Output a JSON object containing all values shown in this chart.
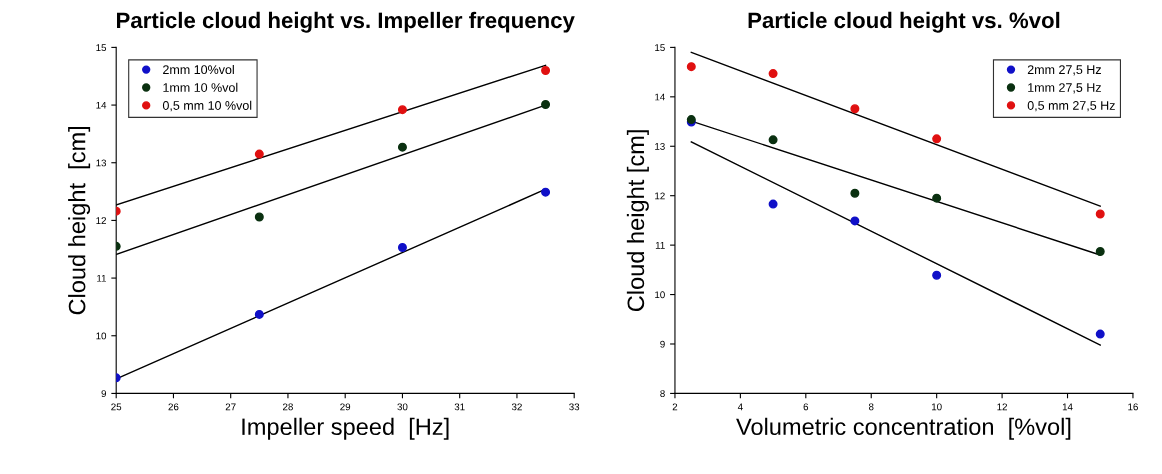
{
  "chart_data": [
    {
      "type": "scatter",
      "title": "Particle cloud height vs. Impeller frequency",
      "xlabel": "Impeller speed  [Hz]",
      "ylabel": "Cloud height  [cm]",
      "xlim": [
        25,
        33
      ],
      "xticks": [
        25,
        26,
        27,
        28,
        29,
        30,
        31,
        32,
        33
      ],
      "ylim": [
        9,
        15
      ],
      "yticks": [
        9,
        10,
        11,
        12,
        13,
        14,
        15
      ],
      "grid": false,
      "legend": "top left",
      "marker": "circle",
      "series": [
        {
          "name": "2mm 10%vol",
          "color": "#1010c8",
          "x": [
            25,
            27.5,
            30,
            32.5
          ],
          "values": [
            9.27,
            10.37,
            11.53,
            12.49
          ]
        },
        {
          "name": "1mm 10 %vol",
          "color": "#0a3010",
          "x": [
            25,
            27.5,
            30,
            32.5
          ],
          "values": [
            11.55,
            12.06,
            13.27,
            14.01
          ]
        },
        {
          "name": "0,5 mm 10 %vol",
          "color": "#e01010",
          "x": [
            25,
            27.5,
            30,
            32.5
          ],
          "values": [
            12.16,
            13.15,
            13.92,
            14.6
          ]
        },
        {
          "type": "line",
          "marker": "none",
          "color": "#000000",
          "x": [
            25,
            32.5
          ],
          "values": [
            9.25,
            12.54
          ]
        },
        {
          "type": "line",
          "marker": "none",
          "color": "#000000",
          "x": [
            25,
            32.5
          ],
          "values": [
            11.41,
            14.0
          ]
        },
        {
          "type": "line",
          "marker": "none",
          "color": "#000000",
          "x": [
            25,
            32.5
          ],
          "values": [
            12.27,
            14.69
          ]
        }
      ]
    },
    {
      "type": "scatter",
      "title": "Particle cloud height vs. %vol",
      "xlabel": "Volumetric concentration  [%vol]",
      "ylabel": "Cloud height [cm]",
      "xlim": [
        2,
        16
      ],
      "xticks": [
        2,
        4,
        6,
        8,
        10,
        12,
        14,
        16
      ],
      "ylim": [
        8,
        15
      ],
      "yticks": [
        8,
        9,
        10,
        11,
        12,
        13,
        14,
        15
      ],
      "grid": false,
      "legend": "top right",
      "marker": "circle",
      "series": [
        {
          "name": "2mm 27,5 Hz",
          "color": "#1010c8",
          "x": [
            2.5,
            5,
            7.5,
            10,
            15
          ],
          "values": [
            13.49,
            11.83,
            11.49,
            10.39,
            9.2
          ]
        },
        {
          "name": "1mm 27,5 Hz",
          "color": "#0a3010",
          "x": [
            2.5,
            5,
            7.5,
            10,
            15
          ],
          "values": [
            13.54,
            13.13,
            12.05,
            11.95,
            10.87
          ]
        },
        {
          "name": "0,5 mm 27,5 Hz",
          "color": "#e01010",
          "x": [
            2.5,
            5,
            7.5,
            10,
            15
          ],
          "values": [
            14.61,
            14.47,
            13.76,
            13.15,
            11.63
          ]
        },
        {
          "type": "line",
          "marker": "none",
          "color": "#000000",
          "x": [
            2.5,
            15
          ],
          "values": [
            14.9,
            11.79
          ]
        },
        {
          "type": "line",
          "marker": "none",
          "color": "#000000",
          "x": [
            2.5,
            15
          ],
          "values": [
            13.51,
            10.8
          ]
        },
        {
          "type": "line",
          "marker": "none",
          "color": "#000000",
          "x": [
            2.5,
            15
          ],
          "values": [
            13.09,
            8.98
          ]
        }
      ]
    }
  ]
}
